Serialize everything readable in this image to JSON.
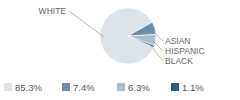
{
  "chart_data": {
    "type": "pie",
    "categories": [
      "WHITE",
      "ASIAN",
      "HISPANIC",
      "BLACK"
    ],
    "values": [
      85.3,
      7.4,
      6.3,
      1.1
    ],
    "value_labels": [
      "85.3%",
      "7.4%",
      "6.3%",
      "1.1%"
    ],
    "colors": [
      "#dde3eb",
      "#6f8ca9",
      "#a9bdd0",
      "#2e5d84"
    ]
  }
}
